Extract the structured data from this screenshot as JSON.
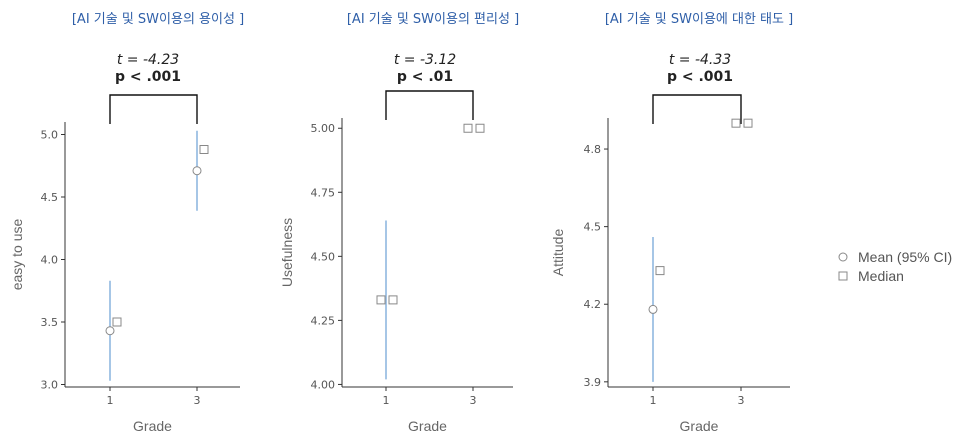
{
  "chart_data": [
    {
      "type": "scatter",
      "title": "[AI 기술 및 SW이용의 용이성 ]",
      "xlabel": "Grade",
      "ylabel": "easy to use",
      "categories": [
        "1",
        "3"
      ],
      "yticks": [
        "3.0",
        "3.5",
        "4.0",
        "4.5",
        "5.0"
      ],
      "ylim": [
        2.98,
        5.1
      ],
      "mean": [
        3.43,
        4.71
      ],
      "ci_low": [
        3.03,
        4.39
      ],
      "ci_high": [
        3.83,
        5.03
      ],
      "median": [
        3.5,
        4.88
      ],
      "stat_t": "t = -4.23",
      "stat_p": "p < .001"
    },
    {
      "type": "scatter",
      "title": "[AI 기술 및 SW이용의 편리성 ]",
      "xlabel": "Grade",
      "ylabel": "Usefulness",
      "categories": [
        "1",
        "3"
      ],
      "yticks": [
        "4.00",
        "4.25",
        "4.50",
        "4.75",
        "5.00"
      ],
      "ylim": [
        3.99,
        5.04
      ],
      "mean": [
        4.33,
        5.0
      ],
      "ci_low": [
        4.02,
        5.0
      ],
      "ci_high": [
        4.64,
        5.0
      ],
      "median": [
        4.33,
        5.0
      ],
      "stat_t": "t = -3.12",
      "stat_p": "p < .01"
    },
    {
      "type": "scatter",
      "title": "[AI 기술 및 SW이용에 대한 태도 ]",
      "xlabel": "Grade",
      "ylabel": "Attitude",
      "categories": [
        "1",
        "3"
      ],
      "yticks": [
        "3.9",
        "4.2",
        "4.5",
        "4.8"
      ],
      "ylim": [
        3.88,
        4.92
      ],
      "mean": [
        4.18,
        4.9
      ],
      "ci_low": [
        3.9,
        4.9
      ],
      "ci_high": [
        4.46,
        4.9
      ],
      "median": [
        4.33,
        4.9
      ],
      "stat_t": "t = -4.33",
      "stat_p": "p < .001"
    }
  ],
  "legend": {
    "position": "right",
    "mean_label": "Mean (95% CI)",
    "median_label": "Median"
  },
  "colors": {
    "title": "#2f5fa8",
    "error_bar": "#8fb7e0",
    "axis": "#333333"
  }
}
